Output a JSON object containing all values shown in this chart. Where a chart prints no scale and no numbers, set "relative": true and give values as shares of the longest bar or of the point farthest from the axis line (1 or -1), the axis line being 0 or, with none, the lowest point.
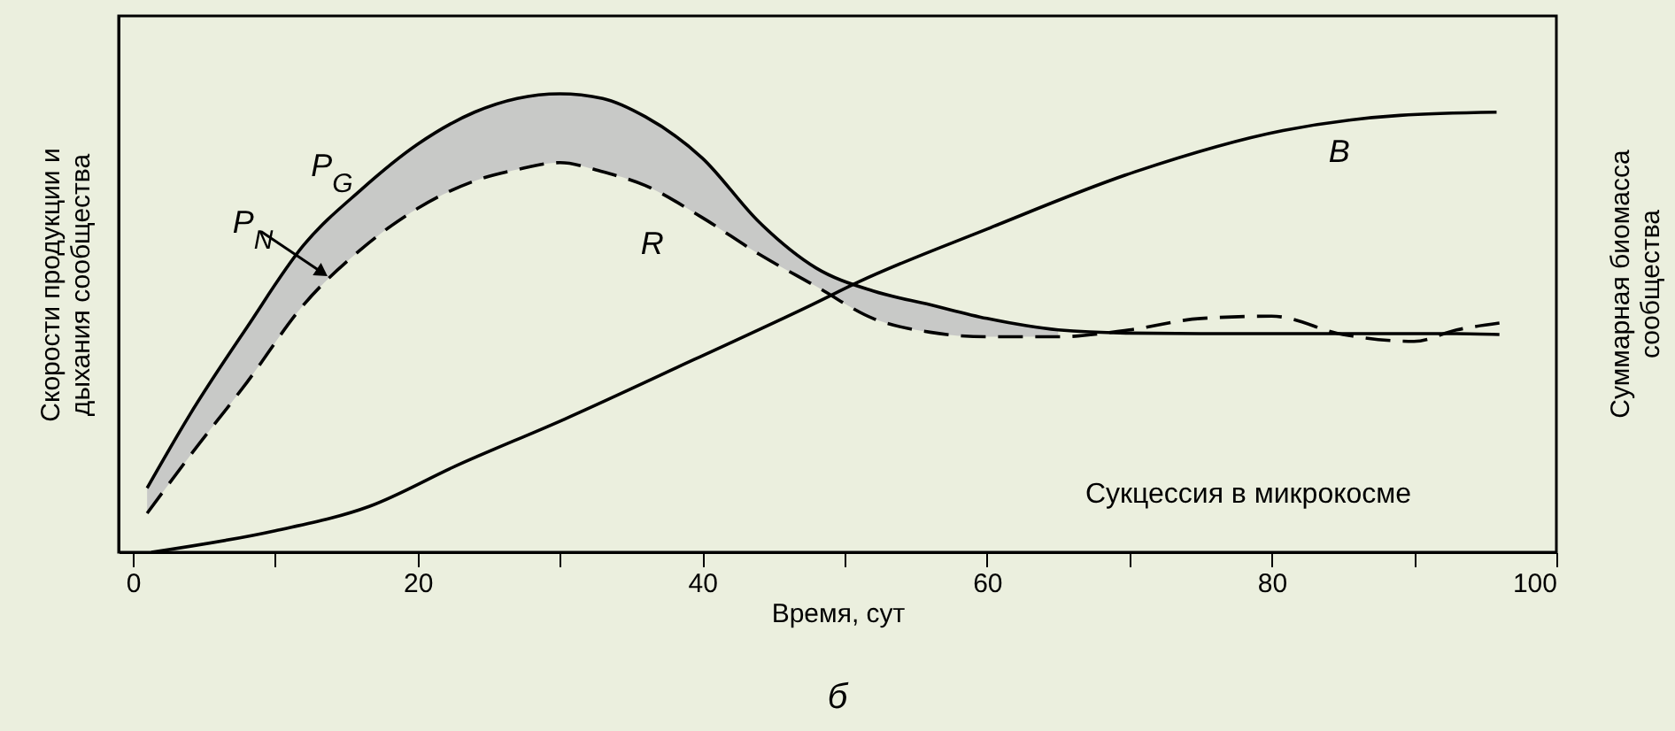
{
  "chart_data": {
    "type": "line",
    "title": "б",
    "xlabel": "Время, сут",
    "ylabel": "Скорости продукции и\nдыхания сообщества",
    "y2label": "Суммарная биомасса\nсообщества",
    "relative": true,
    "xlim": [
      -1,
      100
    ],
    "xticks": [
      0,
      {
        "value": 10,
        "label": null
      },
      20,
      {
        "value": 30,
        "label": null
      },
      40,
      {
        "value": 50,
        "label": null
      },
      60,
      {
        "value": 70,
        "label": null
      },
      80,
      {
        "value": 90,
        "label": null
      },
      100
    ],
    "grid": false,
    "marker": "none",
    "annotations": [
      "Сукцессия в микрокосме",
      {
        "text": "P$_{N}$",
        "x": 13.3,
        "y": 0.61
      }
    ],
    "series": [
      {
        "name": "P$_{G}$",
        "color": "#000000",
        "line_style": "solid",
        "x": [
          1,
          4,
          8,
          12,
          16,
          20,
          24,
          27,
          30,
          33,
          36,
          40,
          44,
          48,
          52,
          56,
          60,
          65,
          70,
          75,
          80,
          85,
          90,
          93,
          96
        ],
        "values": [
          0.14,
          0.3,
          0.49,
          0.67,
          0.79,
          0.89,
          0.96,
          0.99,
          1.0,
          0.99,
          0.95,
          0.86,
          0.72,
          0.62,
          0.57,
          0.54,
          0.51,
          0.485,
          0.478,
          0.477,
          0.477,
          0.477,
          0.477,
          0.477,
          0.475
        ],
        "upper": [
          0.14,
          0.3,
          0.49,
          0.67,
          0.79,
          0.89,
          0.96,
          0.99,
          1.0,
          0.99,
          0.95,
          0.86,
          0.72,
          0.62,
          0.57,
          0.54,
          0.51,
          0.485,
          null,
          null,
          null,
          null,
          null,
          null,
          null
        ],
        "lower": [
          0.085,
          0.21,
          0.37,
          0.54,
          0.66,
          0.75,
          0.81,
          0.835,
          0.85,
          0.83,
          0.8,
          0.73,
          0.65,
          0.58,
          0.51,
          0.48,
          0.47,
          0.47,
          null,
          null,
          null,
          null,
          null,
          null,
          null
        ]
      },
      {
        "name": "R",
        "color": "#000000",
        "line_style": "dashed",
        "x": [
          1,
          4,
          8,
          12,
          16,
          20,
          24,
          27,
          30,
          33,
          36,
          40,
          44,
          48,
          52,
          56,
          60,
          65,
          70,
          75,
          80,
          85,
          90,
          93,
          96
        ],
        "values": [
          0.085,
          0.21,
          0.37,
          0.54,
          0.66,
          0.75,
          0.81,
          0.835,
          0.85,
          0.83,
          0.8,
          0.73,
          0.65,
          0.58,
          0.51,
          0.48,
          0.47,
          0.47,
          0.485,
          0.51,
          0.515,
          0.475,
          0.46,
          0.485,
          0.5
        ]
      },
      {
        "name": "B",
        "color": "#000000",
        "line_style": "solid",
        "x": [
          1.3,
          10,
          16.6,
          22.8,
          30.3,
          39.4,
          47.7,
          51,
          60,
          70.4,
          80.8,
          89,
          95.8
        ],
        "values": [
          0.0,
          0.047,
          0.1,
          0.19,
          0.29,
          0.42,
          0.54,
          0.59,
          0.705,
          0.83,
          0.92,
          0.953,
          0.96
        ]
      }
    ]
  }
}
